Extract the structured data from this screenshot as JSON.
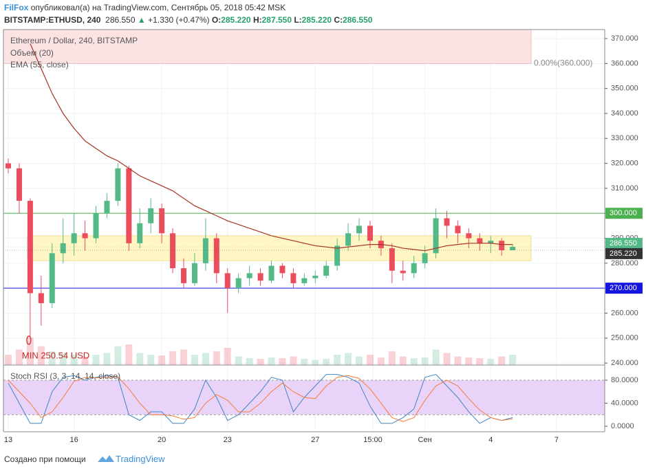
{
  "header": {
    "publisher": "FilFox",
    "published": "опубликовал(а) на TradingView.com, Сентябрь 05, 2018 05:42 MSK",
    "symbol": "BITSTAMP:ETHUSD, 240",
    "last": "286.550",
    "change": "+1.330 (+0.47%)",
    "ohlc": [
      {
        "label": "O:",
        "value": "285.220"
      },
      {
        "label": "H:",
        "value": "287.550"
      },
      {
        "label": "L:",
        "value": "285.220"
      },
      {
        "label": "C:",
        "value": "286.550"
      }
    ]
  },
  "chart_data": [
    {
      "type": "candlestick",
      "title": "Ethereum / Dollar, 240, BITSTAMP",
      "up_color": "#53b987",
      "down_color": "#eb4d5c",
      "x": [
        0,
        0.5,
        1,
        1.5,
        2,
        2.5,
        3,
        3.5,
        4,
        4.5,
        5,
        5.5,
        6,
        6.5,
        7,
        7.5,
        8,
        8.5,
        9,
        9.5,
        10,
        10.5,
        11,
        11.5,
        12,
        12.5,
        13,
        13.5,
        14,
        14.5,
        15,
        15.5,
        16,
        16.5,
        17,
        17.5,
        18,
        18.5,
        19,
        19.5,
        20,
        20.5,
        21,
        21.5,
        22,
        22.5,
        23
      ],
      "open": [
        320,
        318,
        305,
        268,
        264,
        284,
        288,
        292,
        290,
        300,
        305,
        318,
        288,
        296,
        302,
        292,
        278,
        272,
        280,
        290,
        276,
        270,
        274,
        276,
        273,
        279,
        276,
        272,
        274,
        275,
        279,
        287,
        292,
        295,
        289,
        286,
        277,
        276,
        280,
        284,
        298,
        295,
        292,
        290,
        288,
        289,
        285.22
      ],
      "high": [
        322,
        320,
        306,
        275,
        288,
        298,
        300,
        297,
        303,
        308,
        320,
        319,
        302,
        306,
        304,
        294,
        282,
        284,
        298,
        292,
        278,
        276,
        279,
        278,
        281,
        280,
        278,
        276,
        277,
        281,
        290,
        296,
        298,
        297,
        291,
        288,
        281,
        283,
        287,
        302,
        301,
        297,
        294,
        292,
        291,
        290,
        287.55
      ],
      "low": [
        316,
        300,
        250.54,
        255,
        262,
        280,
        283,
        285,
        288,
        298,
        303,
        285,
        286,
        292,
        288,
        276,
        270,
        271,
        277,
        272,
        260,
        268,
        271,
        271,
        272,
        274,
        270,
        271,
        272,
        274,
        277,
        285,
        289,
        286,
        283,
        272,
        273,
        274,
        278,
        282,
        290,
        288,
        286,
        285,
        284,
        283,
        285.22
      ],
      "close": [
        318,
        305,
        268,
        264,
        284,
        288,
        292,
        290,
        300,
        305,
        318,
        288,
        296,
        302,
        292,
        278,
        272,
        280,
        290,
        276,
        270,
        274,
        276,
        273,
        279,
        276,
        272,
        274,
        275,
        279,
        287,
        292,
        295,
        289,
        286,
        277,
        276,
        280,
        284,
        298,
        295,
        292,
        290,
        288,
        289,
        285.22,
        286.55
      ],
      "volume": {
        "name": "Объем (20)",
        "values": [
          30,
          45,
          80,
          55,
          40,
          35,
          30,
          25,
          30,
          35,
          55,
          60,
          35,
          30,
          28,
          40,
          45,
          30,
          35,
          40,
          50,
          25,
          20,
          18,
          22,
          20,
          25,
          18,
          15,
          18,
          30,
          35,
          25,
          30,
          22,
          40,
          25,
          20,
          22,
          45,
          35,
          25,
          22,
          20,
          18,
          25,
          30
        ]
      },
      "ema": {
        "name": "EMA (55, close)",
        "color": "#a83224",
        "values": [
          null,
          null,
          368,
          358,
          348,
          340,
          334,
          329,
          326,
          323,
          321,
          318,
          315,
          313,
          311,
          309,
          306,
          303,
          301,
          299,
          297,
          295.5,
          294,
          292.5,
          291,
          290,
          289,
          288,
          287,
          286.5,
          286,
          286.5,
          287,
          287.5,
          287.5,
          287,
          286,
          285.5,
          285,
          286,
          287,
          287.5,
          288,
          288,
          288,
          287.5,
          287.5
        ]
      },
      "xlim": [
        -0.22,
        27.2
      ],
      "ylim": [
        239.2,
        373.6
      ],
      "xticks": [
        {
          "value": 0,
          "label": "13"
        },
        {
          "value": 3,
          "label": "16"
        },
        {
          "value": 7,
          "label": "20"
        },
        {
          "value": 10,
          "label": "23"
        },
        {
          "value": 14,
          "label": "27"
        },
        {
          "value": 16.625,
          "label": "15:00"
        },
        {
          "value": 19,
          "label": "Сен"
        },
        {
          "value": 22,
          "label": "4"
        },
        {
          "value": 25,
          "label": "7"
        }
      ],
      "yticks": [
        {
          "value": 240,
          "label": "240.000"
        },
        {
          "value": 250,
          "label": "250.000"
        },
        {
          "value": 260,
          "label": "260.000"
        },
        {
          "value": 270,
          "label": "270.000"
        },
        {
          "value": 280,
          "label": "280.000"
        },
        {
          "value": 290,
          "label": "290.000"
        },
        {
          "value": 300,
          "label": "300.000"
        },
        {
          "value": 310,
          "label": "310.000"
        },
        {
          "value": 320,
          "label": "320.000"
        },
        {
          "value": 330,
          "label": "330.000"
        },
        {
          "value": 340,
          "label": "340.000"
        },
        {
          "value": 350,
          "label": "350.000"
        },
        {
          "value": 360,
          "label": "360.000"
        },
        {
          "value": 370,
          "label": "370.000"
        }
      ],
      "levels": [
        {
          "value": 300,
          "label": "300.000",
          "color": "#4caf50"
        },
        {
          "value": 270,
          "label": "270.000",
          "color": "#1515e0"
        }
      ],
      "price_labels": [
        {
          "value": 286.55,
          "label": "286.550",
          "color": "#53b987"
        },
        {
          "value": 285.22,
          "label": "285.220",
          "color": "#333333"
        }
      ],
      "zones": [
        {
          "from": 281,
          "to": 291,
          "color": "#fff6c4"
        },
        {
          "from": 360,
          "to": 373.6,
          "color": "#fbe3e3",
          "label": "0.00%(360.000)"
        }
      ],
      "annotation": "MIN 250.54 USD",
      "grid": true
    },
    {
      "type": "line",
      "title": "Stoch RSI (3, 3, 14, 14, close)",
      "band": [
        20,
        80
      ],
      "band_color": "#e9d3f8",
      "series": [
        {
          "name": "K",
          "color": "#3d85c6",
          "values": [
            75,
            40,
            5,
            5,
            60,
            85,
            88,
            80,
            85,
            88,
            85,
            20,
            10,
            25,
            25,
            5,
            5,
            30,
            80,
            50,
            10,
            20,
            40,
            60,
            85,
            80,
            25,
            50,
            70,
            90,
            90,
            85,
            75,
            35,
            5,
            5,
            15,
            30,
            85,
            90,
            70,
            50,
            25,
            5,
            15,
            10,
            15
          ]
        },
        {
          "name": "D",
          "color": "#f57c3a",
          "values": [
            80,
            60,
            40,
            15,
            25,
            50,
            78,
            85,
            84,
            85,
            86,
            65,
            40,
            20,
            20,
            18,
            12,
            15,
            40,
            55,
            45,
            25,
            25,
            40,
            60,
            75,
            60,
            50,
            48,
            70,
            85,
            88,
            83,
            65,
            40,
            15,
            8,
            15,
            45,
            70,
            80,
            70,
            48,
            28,
            15,
            10,
            13
          ]
        }
      ],
      "ylim": [
        -9.6,
        103.9
      ],
      "yticks": [
        {
          "value": 0,
          "label": "0.0000"
        },
        {
          "value": 40,
          "label": "40.0000"
        },
        {
          "value": 80,
          "label": "80.0000"
        }
      ]
    }
  ],
  "footer": {
    "made_with": "Создано при помощи",
    "brand": "TradingView"
  }
}
